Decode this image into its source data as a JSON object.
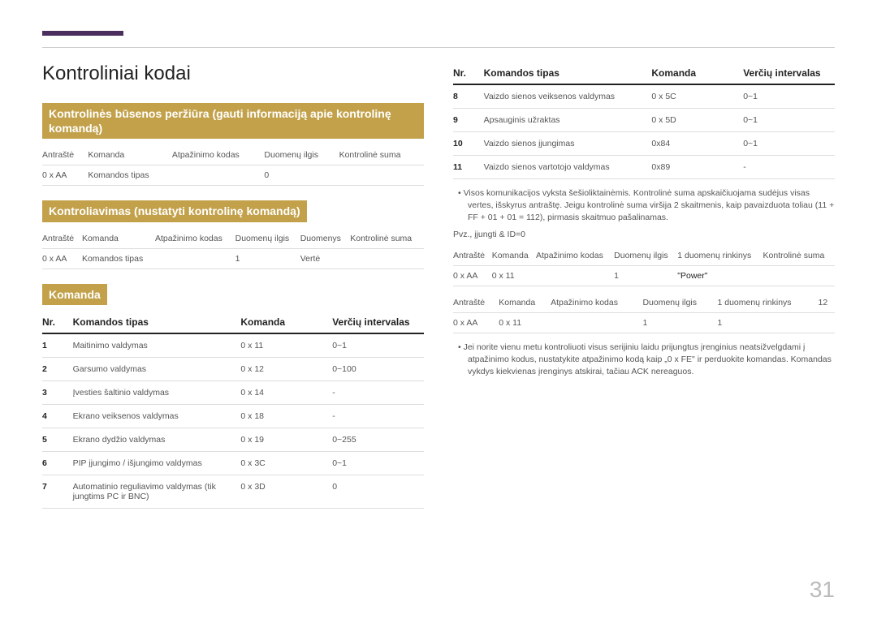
{
  "accent_color": "#4b2e5e",
  "heading_bg": "#c2a14a",
  "page_number": "31",
  "title": "Kontroliniai kodai",
  "section1": {
    "heading": "Kontrolinės būsenos peržiūra (gauti informaciją apie kontrolinę komandą)",
    "headers": [
      "Antraštė",
      "Komanda",
      "Atpažinimo kodas",
      "Duomenų ilgis",
      "Kontrolinė suma"
    ],
    "row": [
      "0 x AA",
      "Komandos tipas",
      "",
      "0",
      ""
    ]
  },
  "section2": {
    "heading": "Kontroliavimas (nustatyti kontrolinę komandą)",
    "headers": [
      "Antraštė",
      "Komanda",
      "Atpažinimo kodas",
      "Duomenų ilgis",
      "Duomenys",
      "Kontrolinė suma"
    ],
    "row": [
      "0 x AA",
      "Komandos tipas",
      "",
      "1",
      "Vertė",
      ""
    ]
  },
  "section3": {
    "heading": "Komanda",
    "headers": {
      "nr": "Nr.",
      "type": "Komandos tipas",
      "cmd": "Komanda",
      "range": "Verčių intervalas"
    },
    "rows_left": [
      {
        "nr": "1",
        "type": "Maitinimo valdymas",
        "cmd": "0 x 11",
        "range": "0~1"
      },
      {
        "nr": "2",
        "type": "Garsumo valdymas",
        "cmd": "0 x 12",
        "range": "0~100"
      },
      {
        "nr": "3",
        "type": "Įvesties šaltinio valdymas",
        "cmd": "0 x 14",
        "range": "-"
      },
      {
        "nr": "4",
        "type": "Ekrano veiksenos valdymas",
        "cmd": "0 x 18",
        "range": "-"
      },
      {
        "nr": "5",
        "type": "Ekrano dydžio valdymas",
        "cmd": "0 x 19",
        "range": "0~255"
      },
      {
        "nr": "6",
        "type": "PIP įjungimo / išjungimo valdymas",
        "cmd": "0 x 3C",
        "range": "0~1"
      },
      {
        "nr": "7",
        "type": "Automatinio reguliavimo valdymas (tik jungtims PC ir BNC)",
        "cmd": "0 x 3D",
        "range": "0"
      }
    ],
    "rows_right": [
      {
        "nr": "8",
        "type": "Vaizdo sienos veiksenos valdymas",
        "cmd": "0 x 5C",
        "range": "0~1"
      },
      {
        "nr": "9",
        "type": "Apsauginis užraktas",
        "cmd": "0 x 5D",
        "range": "0~1"
      },
      {
        "nr": "10",
        "type": "Vaizdo sienos įjungimas",
        "cmd": "0x84",
        "range": "0~1"
      },
      {
        "nr": "11",
        "type": "Vaizdo sienos vartotojo valdymas",
        "cmd": "0x89",
        "range": "-"
      }
    ]
  },
  "note1": "Visos komunikacijos vyksta šešioliktainėmis. Kontrolinė suma apskaičiuojama sudėjus visas vertes, išskyrus antraštę. Jeigu kontrolinė suma viršija 2 skaitmenis, kaip pavaizduota toliau (11 + FF + 01 + 01 = 112), pirmasis skaitmuo pašalinamas.",
  "example_label": "Pvz., įjungti & ID=0",
  "example1": {
    "headers": [
      "Antraštė",
      "Komanda",
      "Atpažinimo kodas",
      "Duomenų ilgis",
      "1 duomenų rinkinys",
      "Kontrolinė suma"
    ],
    "row": [
      "0 x AA",
      "0 x 11",
      "",
      "1",
      "\"Power\"",
      ""
    ]
  },
  "example2": {
    "headers": [
      "Antraštė",
      "Komanda",
      "Atpažinimo kodas",
      "Duomenų ilgis",
      "1 duomenų rinkinys",
      "12"
    ],
    "row": [
      "0 x AA",
      "0 x 11",
      "",
      "1",
      "1",
      ""
    ]
  },
  "note2": "Jei norite vienu metu kontroliuoti visus serijiniu laidu prijungtus įrenginius neatsižvelgdami į atpažinimo kodus, nustatykite atpažinimo kodą kaip „0 x FE\" ir perduokite komandas. Komandas vykdys kiekvienas įrenginys atskirai, tačiau ACK nereaguos."
}
